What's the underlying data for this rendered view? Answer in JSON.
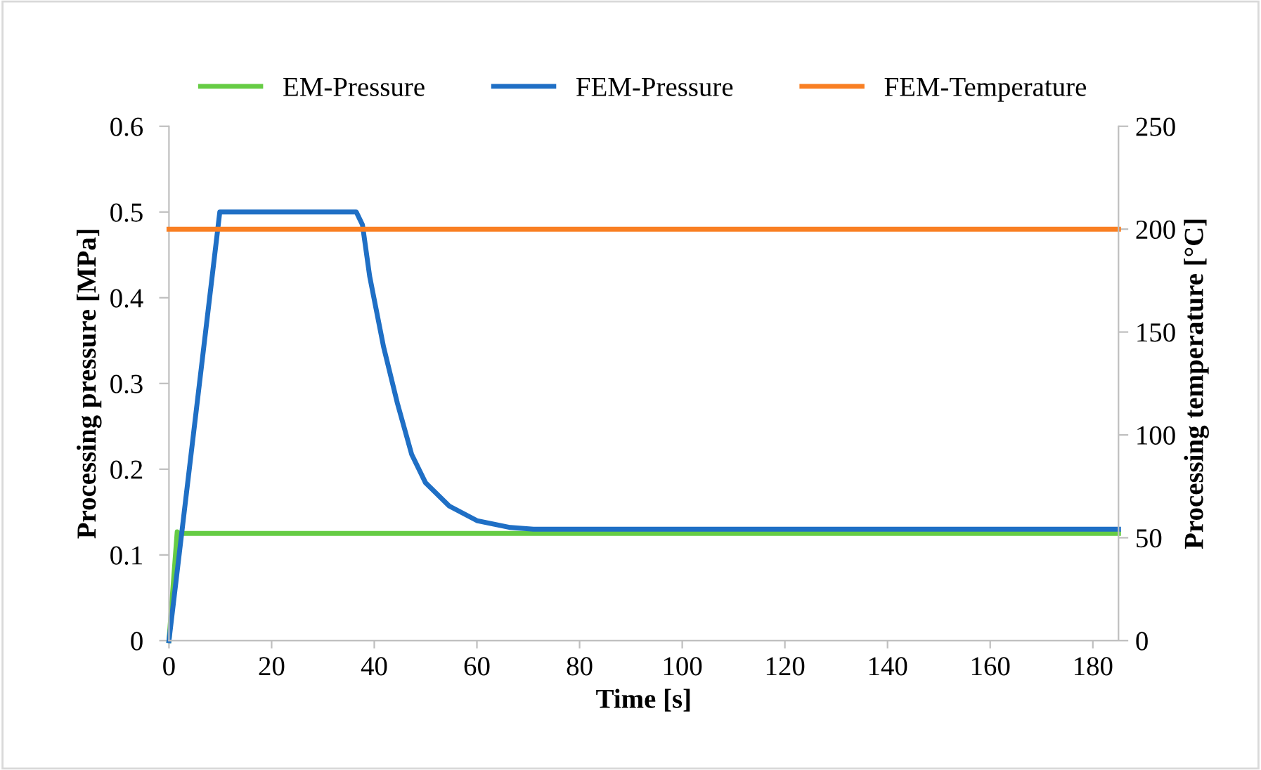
{
  "chart_data": {
    "type": "line",
    "xlabel": "Time [s]",
    "ylabel": "Processing pressure [MPa]",
    "y2label": "Processing temperature [°C]",
    "xlim": [
      0,
      185
    ],
    "xticks": [
      0,
      20,
      40,
      60,
      80,
      100,
      120,
      140,
      160,
      180
    ],
    "ylim": [
      0,
      0.6
    ],
    "yticks": [
      0,
      0.1,
      0.2,
      0.3,
      0.4,
      0.5,
      0.6
    ],
    "y2lim": [
      0,
      250
    ],
    "y2ticks": [
      0,
      50,
      100,
      150,
      200,
      250
    ],
    "legend": "top",
    "grid": false,
    "marker": "none",
    "line_style": "solid",
    "series": [
      {
        "name": "EM-Pressure",
        "color": "#66cc44",
        "x": [
          0,
          1.6,
          2,
          185
        ],
        "values": [
          0,
          0.127,
          0.125,
          0.125
        ]
      },
      {
        "name": "FEM-Pressure",
        "color": "#1f6fc5",
        "x": [
          0,
          9.9,
          36.5,
          37.7,
          39.1,
          41.8,
          44.5,
          47.3,
          50,
          54.6,
          60,
          66.5,
          71,
          185
        ],
        "values": [
          0,
          0.5,
          0.5,
          0.485,
          0.425,
          0.343,
          0.277,
          0.217,
          0.184,
          0.157,
          0.14,
          0.132,
          0.13,
          0.13
        ]
      },
      {
        "name": "FEM-Temperature",
        "color": "#f97f23",
        "axis": "y2",
        "x": [
          0,
          185
        ],
        "values": [
          200,
          200
        ]
      }
    ]
  }
}
